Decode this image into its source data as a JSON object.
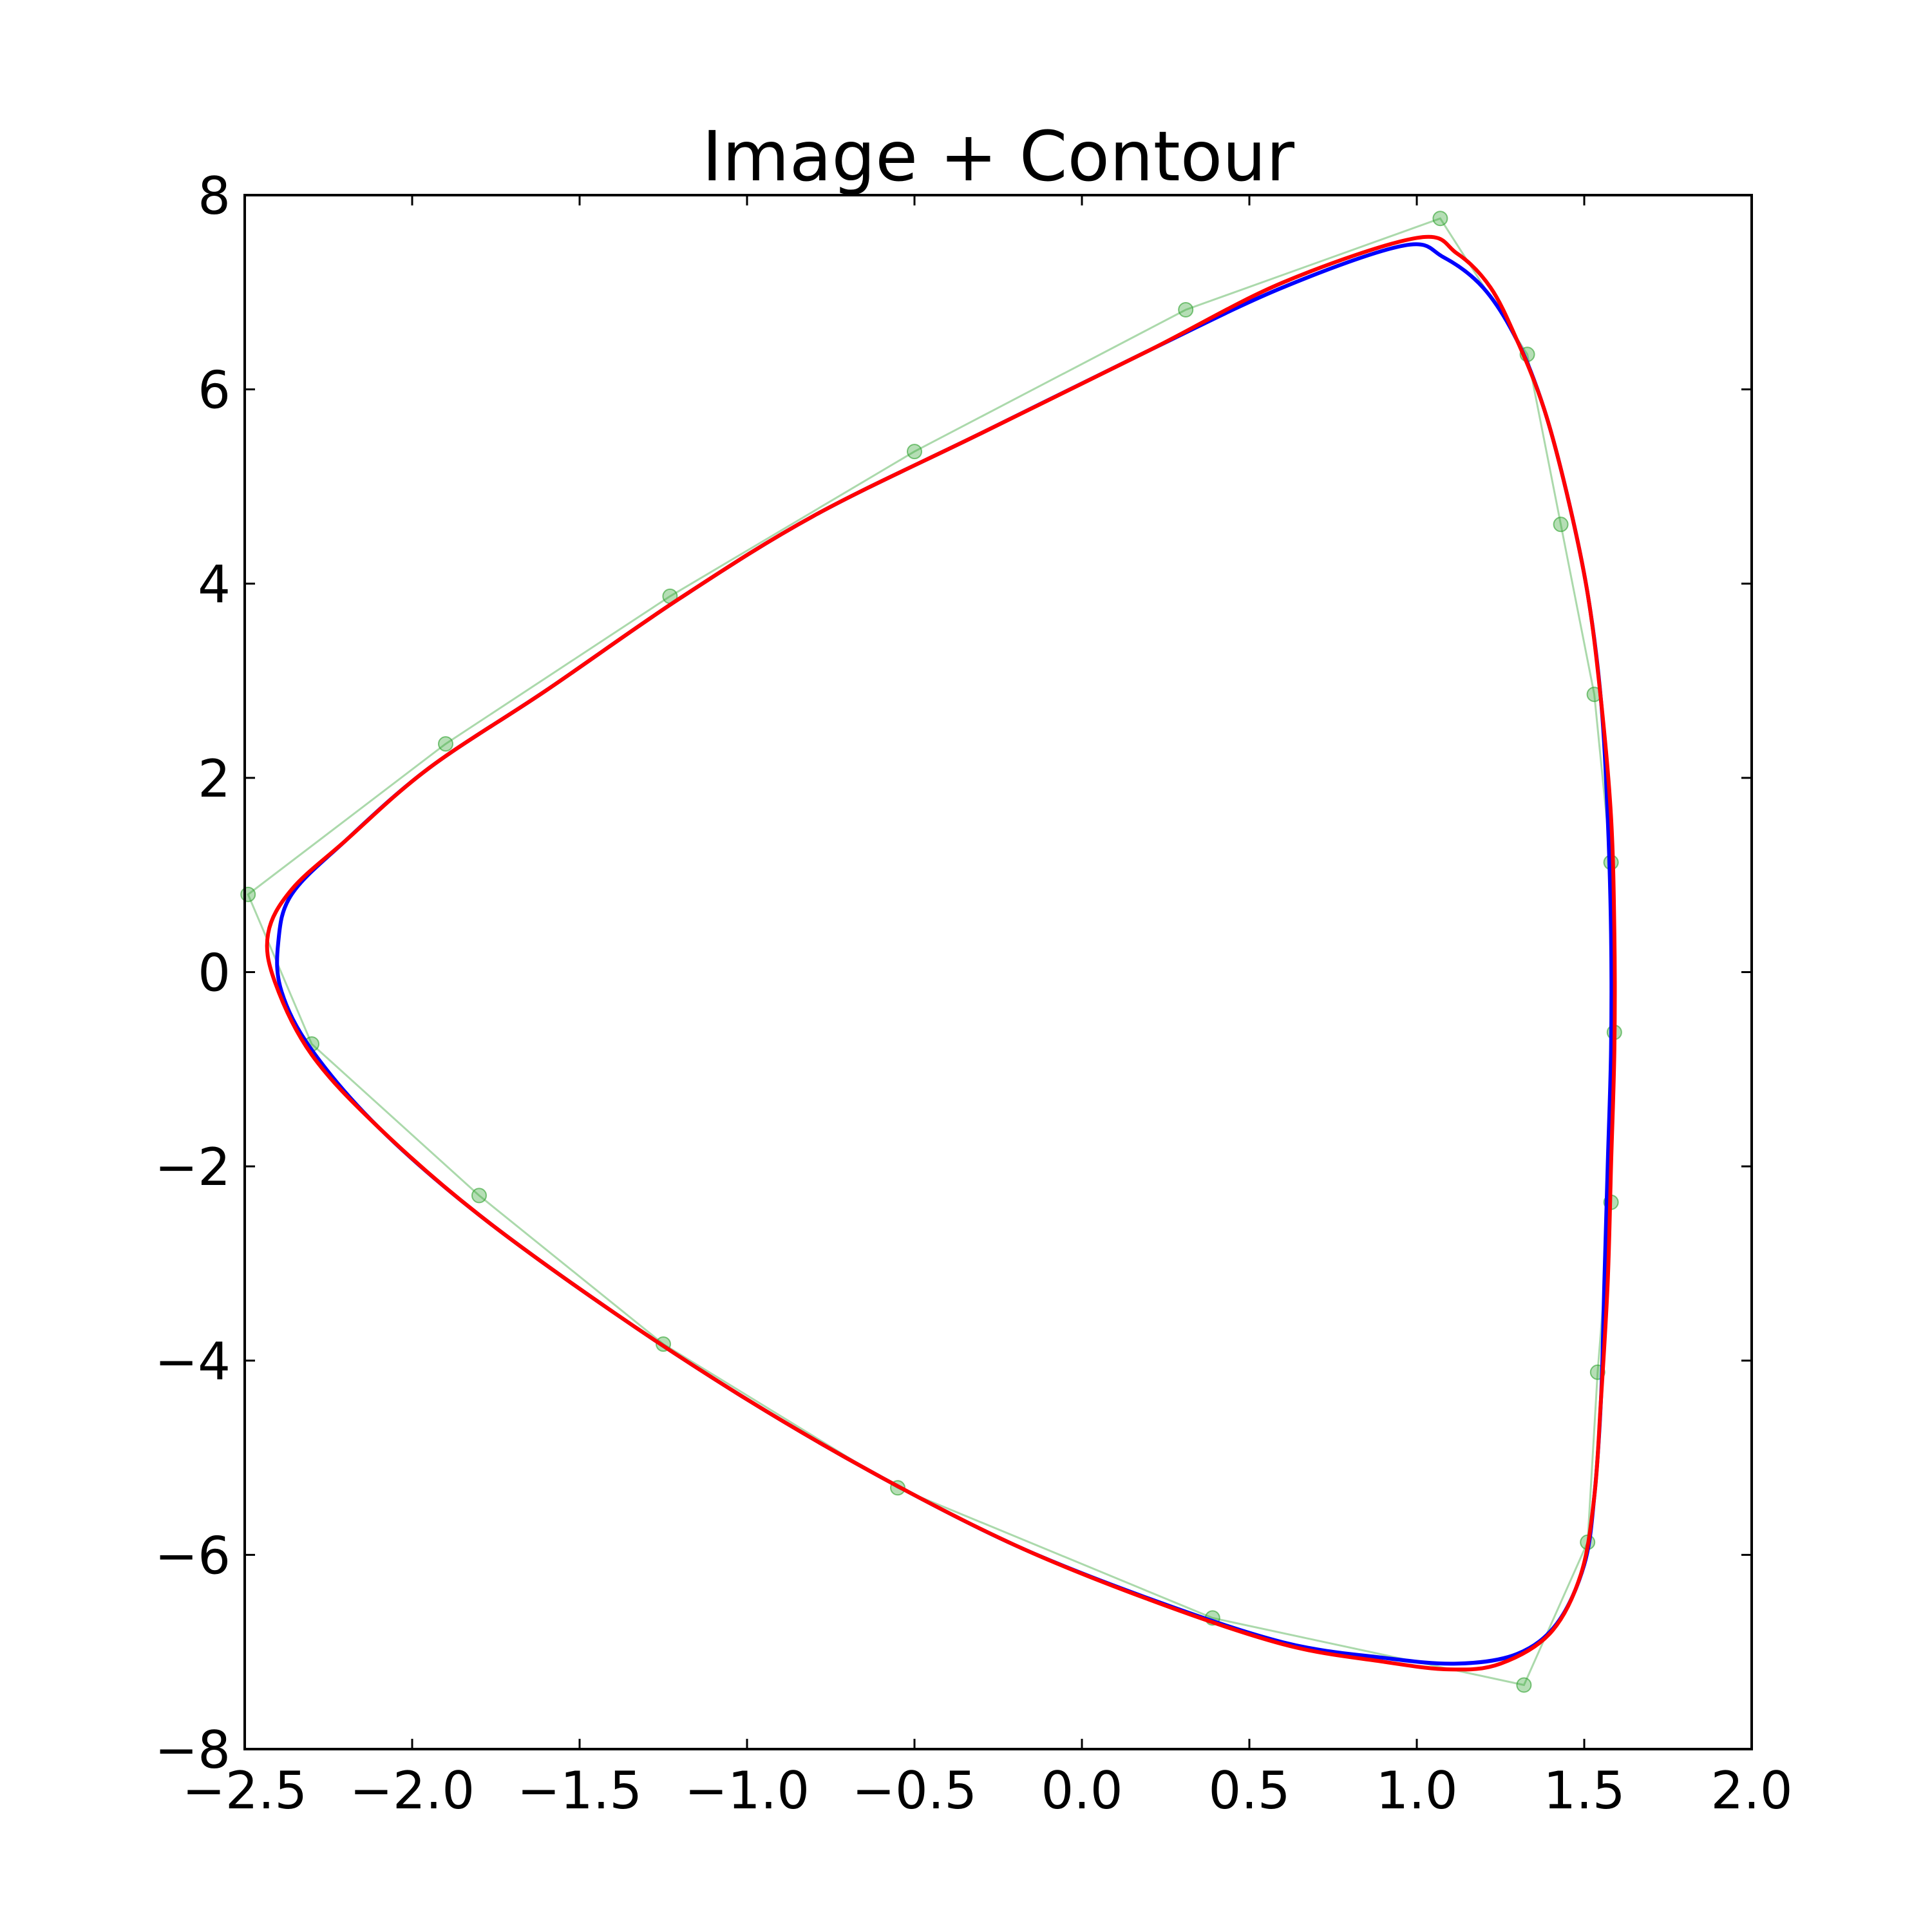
{
  "chart_data": {
    "type": "line",
    "title": "Image + Contour",
    "xlabel": "",
    "ylabel": "",
    "xlim": [
      -2.5,
      2.0
    ],
    "ylim": [
      -8,
      8
    ],
    "x_ticks": [
      -2.5,
      -2.0,
      -1.5,
      -1.0,
      -0.5,
      0.0,
      0.5,
      1.0,
      1.5,
      2.0
    ],
    "x_tick_labels": [
      "−2.5",
      "−2.0",
      "−1.5",
      "−1.0",
      "−0.5",
      "0.0",
      "0.5",
      "1.0",
      "1.5",
      "2.0"
    ],
    "y_ticks": [
      8,
      6,
      4,
      2,
      0,
      -2,
      -4,
      -6,
      -8
    ],
    "y_tick_labels": [
      "8",
      "6",
      "4",
      "2",
      "0",
      "−2",
      "−4",
      "−6",
      "−8"
    ],
    "grid": false,
    "series": [
      {
        "role": "control-points",
        "color": "#2ca02c",
        "closed": true,
        "points": [
          [
            1.07,
            7.76
          ],
          [
            1.33,
            6.36
          ],
          [
            1.43,
            4.61
          ],
          [
            1.53,
            2.86
          ],
          [
            1.58,
            1.13
          ],
          [
            1.59,
            -0.62
          ],
          [
            1.58,
            -2.37
          ],
          [
            1.54,
            -4.12
          ],
          [
            1.51,
            -5.87
          ],
          [
            1.32,
            -7.34
          ],
          [
            0.39,
            -6.65
          ],
          [
            -0.55,
            -5.31
          ],
          [
            -1.25,
            -3.83
          ],
          [
            -1.8,
            -2.3
          ],
          [
            -2.3,
            -0.74
          ],
          [
            -2.49,
            0.8
          ],
          [
            -1.9,
            2.35
          ],
          [
            -1.23,
            3.87
          ],
          [
            -0.5,
            5.36
          ],
          [
            0.31,
            6.82
          ]
        ]
      },
      {
        "role": "contour-blue",
        "color": "#0000ff",
        "closed": true,
        "points": [
          [
            0.96,
            7.48
          ],
          [
            1.08,
            7.36
          ],
          [
            1.2,
            7.04
          ],
          [
            1.3,
            6.5
          ],
          [
            1.38,
            5.8
          ],
          [
            1.45,
            4.9
          ],
          [
            1.51,
            3.9
          ],
          [
            1.55,
            2.8
          ],
          [
            1.57,
            1.6
          ],
          [
            1.58,
            0.4
          ],
          [
            1.58,
            -0.8
          ],
          [
            1.57,
            -2.0
          ],
          [
            1.56,
            -3.2
          ],
          [
            1.55,
            -4.4
          ],
          [
            1.53,
            -5.4
          ],
          [
            1.5,
            -6.1
          ],
          [
            1.42,
            -6.7
          ],
          [
            1.3,
            -7.02
          ],
          [
            1.12,
            -7.12
          ],
          [
            0.9,
            -7.06
          ],
          [
            0.6,
            -6.9
          ],
          [
            0.2,
            -6.45
          ],
          [
            -0.2,
            -5.9
          ],
          [
            -0.6,
            -5.2
          ],
          [
            -1.0,
            -4.4
          ],
          [
            -1.4,
            -3.5
          ],
          [
            -1.8,
            -2.5
          ],
          [
            -2.1,
            -1.6
          ],
          [
            -2.3,
            -0.8
          ],
          [
            -2.39,
            -0.2
          ],
          [
            -2.4,
            0.3
          ],
          [
            -2.36,
            0.8
          ],
          [
            -2.2,
            1.35
          ],
          [
            -1.95,
            2.1
          ],
          [
            -1.6,
            2.9
          ],
          [
            -1.2,
            3.85
          ],
          [
            -0.8,
            4.7
          ],
          [
            -0.3,
            5.55
          ],
          [
            0.2,
            6.4
          ],
          [
            0.6,
            7.05
          ]
        ]
      },
      {
        "role": "contour-red",
        "color": "#ff0000",
        "closed": true,
        "points": [
          [
            1.0,
            7.56
          ],
          [
            1.12,
            7.4
          ],
          [
            1.22,
            7.05
          ],
          [
            1.3,
            6.5
          ],
          [
            1.38,
            5.8
          ],
          [
            1.45,
            4.9
          ],
          [
            1.51,
            3.9
          ],
          [
            1.55,
            2.8
          ],
          [
            1.58,
            1.6
          ],
          [
            1.59,
            0.4
          ],
          [
            1.59,
            -0.8
          ],
          [
            1.58,
            -2.0
          ],
          [
            1.57,
            -3.2
          ],
          [
            1.55,
            -4.4
          ],
          [
            1.53,
            -5.4
          ],
          [
            1.49,
            -6.2
          ],
          [
            1.4,
            -6.8
          ],
          [
            1.25,
            -7.12
          ],
          [
            1.1,
            -7.18
          ],
          [
            0.9,
            -7.1
          ],
          [
            0.6,
            -6.92
          ],
          [
            0.2,
            -6.46
          ],
          [
            -0.2,
            -5.9
          ],
          [
            -0.6,
            -5.2
          ],
          [
            -1.0,
            -4.4
          ],
          [
            -1.4,
            -3.5
          ],
          [
            -1.8,
            -2.5
          ],
          [
            -2.1,
            -1.6
          ],
          [
            -2.3,
            -0.85
          ],
          [
            -2.41,
            -0.1
          ],
          [
            -2.43,
            0.4
          ],
          [
            -2.36,
            0.85
          ],
          [
            -2.2,
            1.35
          ],
          [
            -1.95,
            2.1
          ],
          [
            -1.6,
            2.9
          ],
          [
            -1.2,
            3.85
          ],
          [
            -0.8,
            4.7
          ],
          [
            -0.3,
            5.55
          ],
          [
            0.2,
            6.4
          ],
          [
            0.6,
            7.1
          ]
        ]
      }
    ]
  }
}
